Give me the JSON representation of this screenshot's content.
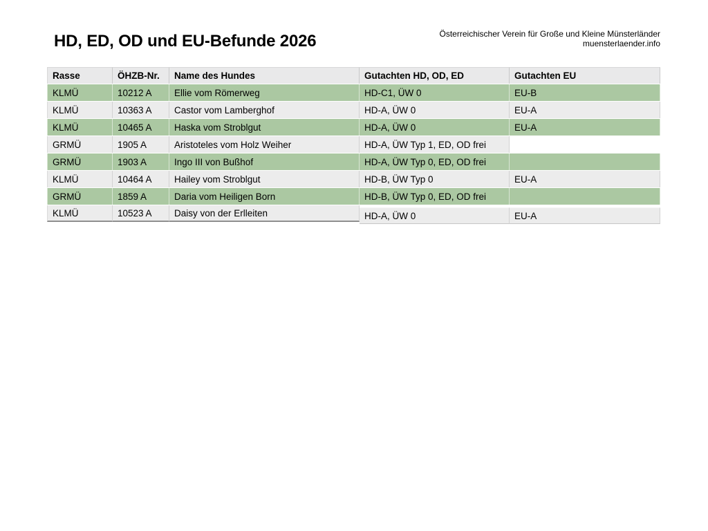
{
  "page": {
    "title": "HD, ED, OD und EU-Befunde 2026",
    "org_line1": "Österreichischer Verein für Große und Kleine Münsterländer",
    "org_line2": "muensterlaender.info"
  },
  "colors": {
    "row_green": "#abc8a2",
    "row_gray": "#ececec",
    "header_bg": "#e9e9ea",
    "text": "#000000",
    "background": "#ffffff"
  },
  "table": {
    "columns": [
      "Rasse",
      "ÖHZB-Nr.",
      "Name des Hundes",
      "Gutachten HD, OD, ED",
      "Gutachten EU"
    ],
    "rows": [
      {
        "rasse": "KLMÜ",
        "oehzb": "10212 A",
        "name": "Ellie vom Römerweg",
        "hd": "HD-C1, ÜW 0",
        "eu": "EU-B"
      },
      {
        "rasse": "KLMÜ",
        "oehzb": "10363 A",
        "name": "Castor vom Lamberghof",
        "hd": "HD-A, ÜW 0",
        "eu": "EU-A"
      },
      {
        "rasse": "KLMÜ",
        "oehzb": "10465 A",
        "name": "Haska vom Stroblgut",
        "hd": "HD-A, ÜW 0",
        "eu": "EU-A"
      },
      {
        "rasse": "GRMÜ",
        "oehzb": "1905 A",
        "name": "Aristoteles vom Holz Weiher",
        "hd": "HD-A, ÜW Typ 1, ED, OD frei",
        "eu": ""
      },
      {
        "rasse": "GRMÜ",
        "oehzb": "1903 A",
        "name": "Ingo III von Bußhof",
        "hd": "HD-A, ÜW Typ 0, ED, OD frei",
        "eu": ""
      },
      {
        "rasse": "KLMÜ",
        "oehzb": "10464 A",
        "name": "Hailey vom Stroblgut",
        "hd": "HD-B, ÜW Typ 0",
        "eu": "EU-A"
      },
      {
        "rasse": "GRMÜ",
        "oehzb": "1859 A",
        "name": "Daria vom Heiligen Born",
        "hd": "HD-B, ÜW Typ 0, ED, OD frei",
        "eu": ""
      },
      {
        "rasse": "KLMÜ",
        "oehzb": "10523 A",
        "name": "Daisy von der Erlleiten",
        "hd": "HD-A, ÜW 0",
        "eu": "EU-A"
      }
    ]
  }
}
